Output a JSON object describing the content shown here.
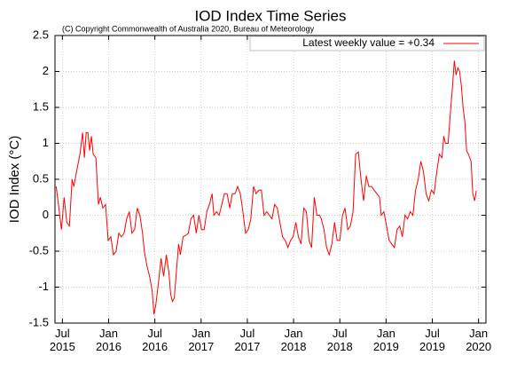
{
  "chart_data": {
    "type": "line",
    "title": "IOD Index Time Series",
    "annotation": "(C) Copyright Commonwealth of Australia 2020, Bureau of Meteorology",
    "y_label": "IOD Index (°C)",
    "xlim": [
      2015.42,
      2020.08
    ],
    "xticks": [
      {
        "value": 2015.5,
        "label": "Jul 2015"
      },
      {
        "value": 2016.0,
        "label": "Jan 2016"
      },
      {
        "value": 2016.5,
        "label": "Jul 2016"
      },
      {
        "value": 2017.0,
        "label": "Jan 2017"
      },
      {
        "value": 2017.5,
        "label": "Jul 2017"
      },
      {
        "value": 2018.0,
        "label": "Jan 2018"
      },
      {
        "value": 2018.5,
        "label": "Jul 2018"
      },
      {
        "value": 2019.0,
        "label": "Jan 2019"
      },
      {
        "value": 2019.5,
        "label": "Jul 2019"
      },
      {
        "value": 2020.0,
        "label": "Jan 2020"
      }
    ],
    "ylim": [
      -1.5,
      2.5
    ],
    "yticks": [
      -1.5,
      -1,
      -0.5,
      0,
      0.5,
      1,
      1.5,
      2,
      2.5
    ],
    "grid": true,
    "legend": "top-right",
    "x": [
      2015.433,
      2015.462,
      2015.49,
      2015.519,
      2015.548,
      2015.576,
      2015.605,
      2015.624,
      2015.652,
      2015.69,
      2015.719,
      2015.738,
      2015.757,
      2015.776,
      2015.795,
      2015.814,
      2015.833,
      2015.862,
      2015.89,
      2015.91,
      2015.938,
      2015.967,
      2015.995,
      2016.024,
      2016.052,
      2016.081,
      2016.11,
      2016.138,
      2016.167,
      2016.195,
      2016.224,
      2016.252,
      2016.281,
      2016.31,
      2016.338,
      2016.367,
      2016.386,
      2016.414,
      2016.443,
      2016.471,
      2016.49,
      2016.51,
      2016.538,
      2016.567,
      2016.595,
      2016.624,
      2016.652,
      2016.671,
      2016.69,
      2016.71,
      2016.738,
      2016.757,
      2016.776,
      2016.805,
      2016.833,
      2016.862,
      2016.89,
      2016.919,
      2016.948,
      2016.976,
      2017.005,
      2017.033,
      2017.062,
      2017.09,
      2017.119,
      2017.138,
      2017.167,
      2017.195,
      2017.224,
      2017.252,
      2017.281,
      2017.31,
      2017.338,
      2017.367,
      2017.395,
      2017.424,
      2017.452,
      2017.481,
      2017.51,
      2017.538,
      2017.567,
      2017.595,
      2017.624,
      2017.652,
      2017.681,
      2017.71,
      2017.738,
      2017.767,
      2017.795,
      2017.824,
      2017.852,
      2017.881,
      2017.91,
      2017.938,
      2017.967,
      2017.995,
      2018.024,
      2018.052,
      2018.081,
      2018.11,
      2018.138,
      2018.167,
      2018.195,
      2018.224,
      2018.252,
      2018.281,
      2018.3,
      2018.329,
      2018.357,
      2018.386,
      2018.414,
      2018.443,
      2018.471,
      2018.5,
      2018.529,
      2018.557,
      2018.586,
      2018.614,
      2018.643,
      2018.671,
      2018.7,
      2018.729,
      2018.757,
      2018.786,
      2018.814,
      2018.843,
      2018.871,
      2018.9,
      2018.929,
      2018.948,
      2018.976,
      2019.005,
      2019.033,
      2019.062,
      2019.09,
      2019.119,
      2019.148,
      2019.176,
      2019.205,
      2019.233,
      2019.262,
      2019.29,
      2019.319,
      2019.348,
      2019.376,
      2019.405,
      2019.433,
      2019.462,
      2019.49,
      2019.519,
      2019.548,
      2019.576,
      2019.605,
      2019.624,
      2019.643,
      2019.671,
      2019.7,
      2019.719,
      2019.738,
      2019.757,
      2019.776,
      2019.795,
      2019.814,
      2019.833,
      2019.852,
      2019.871,
      2019.89,
      2019.919,
      2019.938,
      2019.957,
      2019.976
    ],
    "series": [
      {
        "name": "Latest weekly value = +0.34",
        "color": "#ff0000",
        "values": [
          0.4,
          0.1,
          -0.2,
          0.25,
          -0.1,
          -0.15,
          0.5,
          0.4,
          0.6,
          0.85,
          1.15,
          0.8,
          1.15,
          1.15,
          0.9,
          1.1,
          0.85,
          0.8,
          0.15,
          0.25,
          0.1,
          0.15,
          -0.35,
          -0.3,
          -0.55,
          -0.5,
          -0.25,
          -0.3,
          -0.25,
          -0.05,
          0.05,
          -0.25,
          -0.2,
          0.1,
          0.0,
          -0.25,
          -0.5,
          -0.7,
          -0.85,
          -1.05,
          -1.38,
          -1.25,
          -0.95,
          -0.6,
          -0.85,
          -0.55,
          -0.8,
          -1.1,
          -1.2,
          -1.15,
          -0.7,
          -0.4,
          -0.55,
          -0.3,
          -0.28,
          -0.25,
          -0.05,
          0.0,
          -0.25,
          0.0,
          -0.2,
          -0.2,
          0.05,
          0.15,
          0.3,
          0.0,
          0.05,
          0.0,
          0.15,
          0.3,
          0.3,
          0.1,
          0.3,
          0.3,
          0.4,
          0.3,
          0.05,
          -0.25,
          -0.2,
          -0.05,
          0.4,
          0.3,
          0.35,
          0.35,
          0.0,
          0.05,
          0.0,
          -0.05,
          0.15,
          0.1,
          -0.1,
          -0.3,
          -0.35,
          -0.45,
          -0.35,
          -0.3,
          -0.1,
          -0.3,
          -0.4,
          0.1,
          0.05,
          -0.35,
          -0.45,
          0.25,
          0.0,
          0.0,
          -0.05,
          -0.2,
          -0.45,
          -0.55,
          -0.4,
          -0.1,
          -0.35,
          -0.35,
          0.0,
          0.1,
          -0.2,
          -0.15,
          0.05,
          0.85,
          0.88,
          0.5,
          0.2,
          0.55,
          0.4,
          0.4,
          0.35,
          0.3,
          0.25,
          0.0,
          0.05,
          -0.15,
          -0.35,
          -0.4,
          -0.45,
          -0.2,
          -0.15,
          -0.3,
          0.0,
          -0.05,
          0.05,
          0.0,
          0.35,
          0.5,
          0.75,
          0.6,
          0.3,
          0.2,
          0.35,
          0.3,
          0.6,
          0.85,
          0.8,
          1.1,
          1.0,
          1.0,
          1.5,
          1.8,
          2.15,
          1.95,
          2.05,
          2.0,
          1.8,
          1.5,
          1.3,
          0.9,
          0.85,
          0.75,
          0.3,
          0.2,
          0.34
        ]
      }
    ]
  }
}
